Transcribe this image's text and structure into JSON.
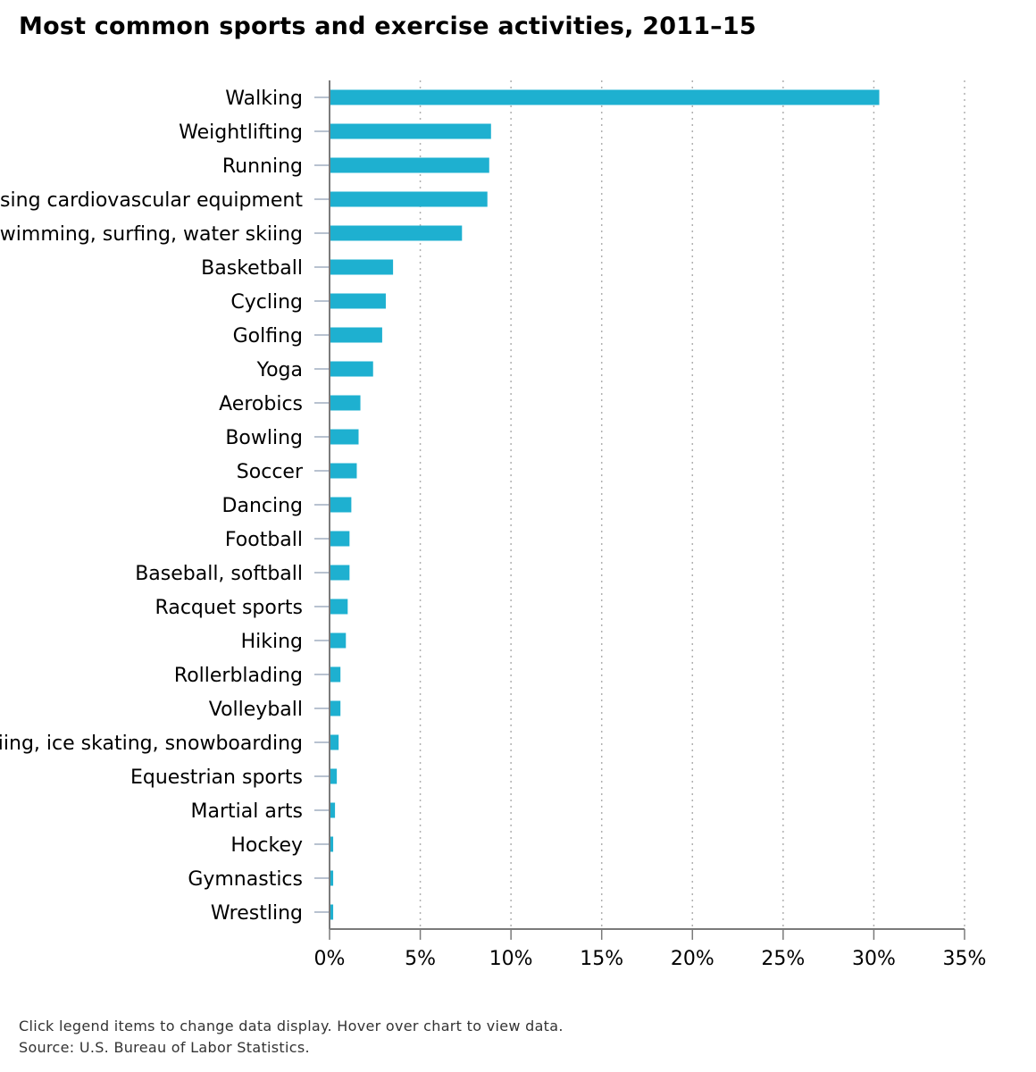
{
  "colors": {
    "bar": "#1eb0d0",
    "grid": "#b0b0b0",
    "axis": "#7a7a7a",
    "tick": "#a0aec0"
  },
  "footer": {
    "note": "Click legend items to change data display. Hover over chart to view data.",
    "source": "Source: U.S. Bureau of Labor Statistics."
  },
  "chart_data": {
    "type": "bar",
    "orientation": "horizontal",
    "title": "Most common sports and exercise activities, 2011–15",
    "categories": [
      "Walking",
      "Weightlifting",
      "Running",
      "Using cardiovascular equipment",
      "Swimming, surfing, water skiing",
      "Basketball",
      "Cycling",
      "Golfing",
      "Yoga",
      "Aerobics",
      "Bowling",
      "Soccer",
      "Dancing",
      "Football",
      "Baseball, softball",
      "Racquet sports",
      "Hiking",
      "Rollerblading",
      "Volleyball",
      "Skiing, ice skating, snowboarding",
      "Equestrian sports",
      "Martial arts",
      "Hockey",
      "Gymnastics",
      "Wrestling"
    ],
    "values": [
      30.3,
      8.9,
      8.8,
      8.7,
      7.3,
      3.5,
      3.1,
      2.9,
      2.4,
      1.7,
      1.6,
      1.5,
      1.2,
      1.1,
      1.1,
      1.0,
      0.9,
      0.6,
      0.6,
      0.5,
      0.4,
      0.3,
      0.2,
      0.2,
      0.2
    ],
    "xlim": [
      0,
      35
    ],
    "xticks": [
      0,
      5,
      10,
      15,
      20,
      25,
      30,
      35
    ],
    "tick_labels": [
      "0%",
      "5%",
      "10%",
      "15%",
      "20%",
      "25%",
      "30%",
      "35%"
    ],
    "grid": true
  }
}
